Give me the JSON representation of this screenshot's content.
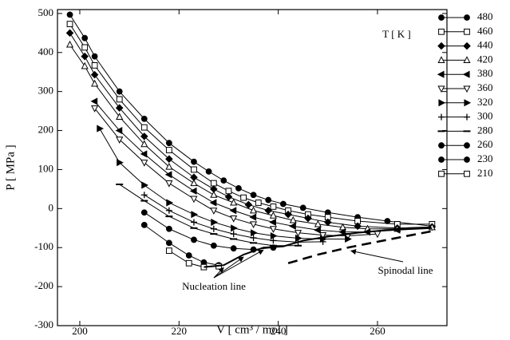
{
  "chart_data": {
    "type": "line",
    "x_label": "V [ cm³ / mol ]",
    "y_label": "P [ MPa ]",
    "legend_title": "T [ K ]",
    "xlim": [
      195.5,
      274
    ],
    "xticks": [
      200,
      220,
      240,
      260
    ],
    "ylim": [
      -300,
      510
    ],
    "yticks": [
      -300,
      -200,
      -100,
      0,
      100,
      200,
      300,
      400,
      500
    ],
    "color": "#000000",
    "series": [
      {
        "name": "480",
        "marker": "filled-circle",
        "x": [
          198,
          201,
          203,
          208,
          213,
          218,
          223,
          226,
          229,
          232,
          235,
          238,
          241,
          245,
          250,
          256,
          262,
          271
        ],
        "values": [
          497,
          437,
          390,
          300,
          230,
          168,
          120,
          95,
          72,
          52,
          35,
          22,
          12,
          2,
          -10,
          -22,
          -32,
          -45
        ]
      },
      {
        "name": "460",
        "marker": "open-square",
        "x": [
          198,
          201,
          203,
          208,
          213,
          218,
          223,
          227,
          230,
          233,
          236,
          239,
          242,
          246,
          250,
          256,
          264,
          271
        ],
        "values": [
          473,
          413,
          367,
          280,
          208,
          150,
          100,
          65,
          45,
          28,
          15,
          5,
          -5,
          -15,
          -22,
          -32,
          -40,
          -40
        ]
      },
      {
        "name": "440",
        "marker": "filled-diamond",
        "x": [
          198,
          201,
          203,
          208,
          213,
          218,
          223,
          227,
          230,
          234,
          238,
          242,
          246,
          250,
          256,
          264,
          271
        ],
        "values": [
          450,
          390,
          343,
          258,
          185,
          127,
          80,
          50,
          30,
          10,
          -5,
          -15,
          -25,
          -35,
          -45,
          -50,
          -47
        ]
      },
      {
        "name": "420",
        "marker": "open-triangle-up",
        "x": [
          198,
          201,
          203,
          208,
          213,
          218,
          223,
          227,
          231,
          235,
          239,
          243,
          248,
          253,
          258,
          264,
          271
        ],
        "values": [
          420,
          365,
          320,
          235,
          165,
          107,
          65,
          35,
          15,
          -5,
          -18,
          -30,
          -40,
          -48,
          -52,
          -52,
          -48
        ]
      },
      {
        "name": "380",
        "marker": "filled-triangle-left",
        "x": [
          203,
          208,
          213,
          218,
          223,
          227,
          231,
          235,
          239,
          243,
          248,
          253,
          258,
          264
        ],
        "values": [
          275,
          200,
          140,
          87,
          45,
          15,
          -5,
          -22,
          -35,
          -45,
          -55,
          -60,
          -60,
          -55
        ]
      },
      {
        "name": "360",
        "marker": "open-triangle-down",
        "x": [
          203,
          208,
          213,
          218,
          223,
          227,
          231,
          235,
          239,
          244,
          249,
          254,
          260
        ],
        "values": [
          257,
          177,
          118,
          65,
          25,
          -5,
          -25,
          -40,
          -52,
          -62,
          -68,
          -70,
          -65
        ]
      },
      {
        "name": "320",
        "marker": "filled-triangle-right",
        "x": [
          204,
          208,
          213,
          218,
          223,
          227,
          231,
          235,
          239,
          244,
          249,
          254
        ],
        "values": [
          205,
          118,
          60,
          15,
          -15,
          -35,
          -50,
          -62,
          -70,
          -76,
          -78,
          -78
        ]
      },
      {
        "name": "300",
        "marker": "plus",
        "x": [
          213,
          218,
          223,
          227,
          231,
          235,
          239,
          244,
          249
        ],
        "values": [
          35,
          -5,
          -35,
          -52,
          -65,
          -75,
          -82,
          -86,
          -85
        ]
      },
      {
        "name": "280",
        "marker": "dash",
        "x": [
          208,
          213,
          218,
          223,
          227,
          231,
          235,
          239,
          244
        ],
        "values": [
          62,
          20,
          -20,
          -50,
          -65,
          -78,
          -88,
          -95,
          -95
        ]
      },
      {
        "name": "260",
        "marker": "filled-circle",
        "x": [
          213,
          218,
          223,
          227,
          231,
          235,
          239
        ],
        "values": [
          -10,
          -52,
          -80,
          -95,
          -102,
          -105,
          -100
        ]
      },
      {
        "name": "230",
        "marker": "filled-circle",
        "x": [
          213,
          218,
          222,
          225,
          228
        ],
        "values": [
          -42,
          -88,
          -120,
          -138,
          -145
        ]
      },
      {
        "name": "210",
        "marker": "open-square",
        "x": [
          218,
          222,
          225,
          228
        ],
        "values": [
          -108,
          -140,
          -150,
          -148
        ]
      }
    ],
    "boundary_lines": [
      {
        "name": "Nucleation line",
        "dashed": false,
        "x": [
          225,
          229,
          233,
          237,
          241,
          245,
          250,
          256,
          262,
          271
        ],
        "values": [
          -150,
          -145,
          -118,
          -100,
          -97,
          -82,
          -72,
          -62,
          -55,
          -50
        ]
      },
      {
        "name": "Spinodal line",
        "dashed": true,
        "x": [
          242,
          248,
          254,
          260,
          266,
          271
        ],
        "values": [
          -140,
          -118,
          -100,
          -85,
          -70,
          -58
        ]
      }
    ]
  }
}
